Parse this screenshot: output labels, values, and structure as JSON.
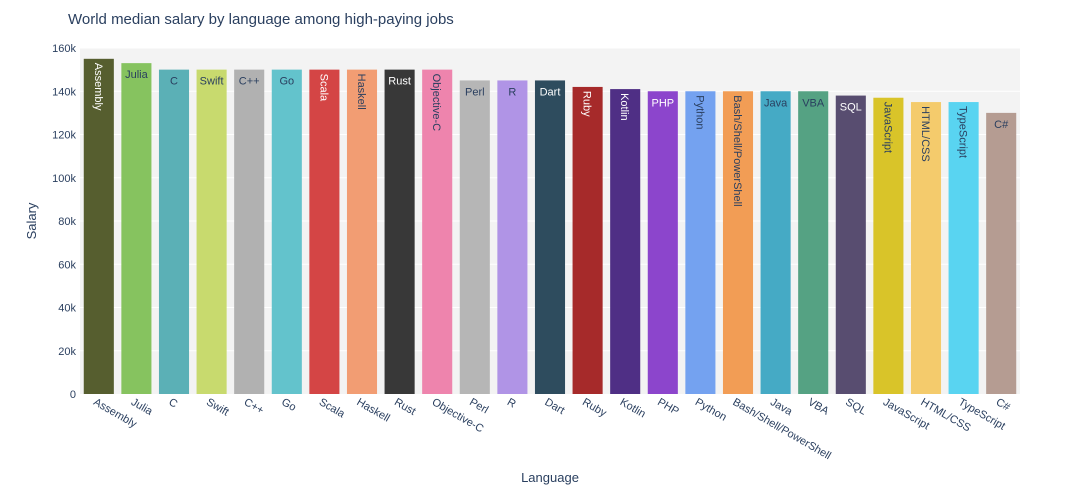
{
  "chart_data": {
    "type": "bar",
    "title": "World median salary by language among high-paying jobs",
    "xlabel": "Language",
    "ylabel": "Salary",
    "ylim": [
      0,
      160000
    ],
    "y_ticks": [
      0,
      20000,
      40000,
      60000,
      80000,
      100000,
      120000,
      140000,
      160000
    ],
    "y_tick_labels": [
      "0",
      "20k",
      "40k",
      "60k",
      "80k",
      "100k",
      "120k",
      "140k",
      "160k"
    ],
    "grid": true,
    "legend": "none",
    "categories": [
      "Assembly",
      "Julia",
      "C",
      "Swift",
      "C++",
      "Go",
      "Scala",
      "Haskell",
      "Rust",
      "Objective-C",
      "Perl",
      "R",
      "Dart",
      "Ruby",
      "Kotlin",
      "PHP",
      "Python",
      "Bash/Shell/PowerShell",
      "Java",
      "VBA",
      "SQL",
      "JavaScript",
      "HTML/CSS",
      "TypeScript",
      "C#"
    ],
    "values": [
      155000,
      153000,
      150000,
      150000,
      150000,
      150000,
      150000,
      150000,
      150000,
      150000,
      145000,
      145000,
      145000,
      142000,
      141000,
      140000,
      140000,
      140000,
      140000,
      140000,
      138000,
      137000,
      135000,
      135000,
      130000
    ],
    "colors": [
      "#565e2f",
      "#86c35f",
      "#5bb0b6",
      "#c8da6e",
      "#b1b1b1",
      "#63c3cc",
      "#d44545",
      "#f29d73",
      "#383838",
      "#ee84ad",
      "#b6b6b6",
      "#b094e6",
      "#2e4c5e",
      "#a62a2a",
      "#4f2f85",
      "#8c45cc",
      "#74a2f0",
      "#f29d55",
      "#45aac5",
      "#55a283",
      "#584d70",
      "#d9c429",
      "#f4cb6c",
      "#59d4f1",
      "#b59c92"
    ],
    "label_colors": [
      "#ffffff",
      "#2a3f5f",
      "#2a3f5f",
      "#2a3f5f",
      "#2a3f5f",
      "#2a3f5f",
      "#ffffff",
      "#2a3f5f",
      "#ffffff",
      "#2a3f5f",
      "#2a3f5f",
      "#2a3f5f",
      "#ffffff",
      "#ffffff",
      "#ffffff",
      "#ffffff",
      "#2a3f5f",
      "#2a3f5f",
      "#2a3f5f",
      "#2a3f5f",
      "#ffffff",
      "#2a3f5f",
      "#2a3f5f",
      "#2a3f5f",
      "#2a3f5f"
    ],
    "label_orientation": [
      "vertical",
      "horizontal",
      "horizontal",
      "horizontal",
      "horizontal",
      "horizontal",
      "vertical",
      "vertical",
      "horizontal",
      "vertical",
      "horizontal",
      "horizontal",
      "horizontal",
      "vertical",
      "vertical",
      "horizontal",
      "vertical",
      "vertical",
      "horizontal",
      "horizontal",
      "horizontal",
      "vertical",
      "vertical",
      "vertical",
      "horizontal"
    ]
  }
}
